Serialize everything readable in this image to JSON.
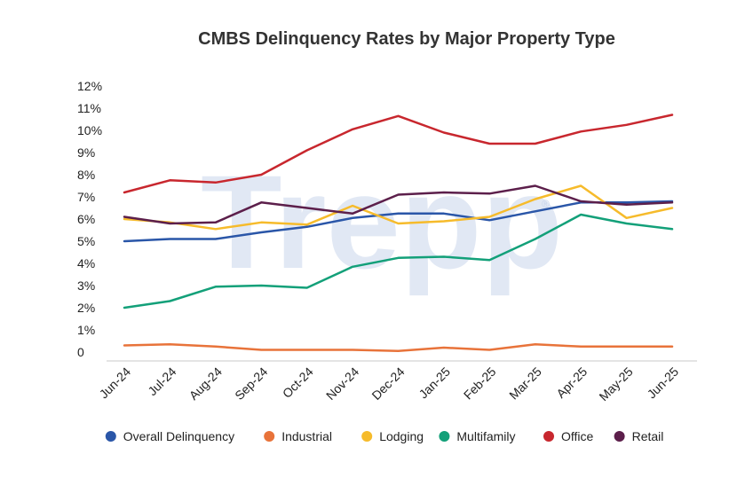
{
  "chart_data": {
    "type": "line",
    "title": "CMBS Delinquency Rates by Major Property Type",
    "watermark": "Trepp",
    "categories": [
      "Jun-24",
      "Jul-24",
      "Aug-24",
      "Sep-24",
      "Oct-24",
      "Nov-24",
      "Dec-24",
      "Jan-25",
      "Feb-25",
      "Mar-25",
      "Apr-25",
      "May-25",
      "Jun-25"
    ],
    "y_ticks": [
      "0",
      "1%",
      "2%",
      "3%",
      "4%",
      "5%",
      "6%",
      "7%",
      "8%",
      "9%",
      "10%",
      "11%",
      "12%"
    ],
    "ylim": [
      0,
      12
    ],
    "grid": false,
    "legend_position": "bottom",
    "series": [
      {
        "name": "Overall Delinquency",
        "color": "#2a56a8",
        "values": [
          5.0,
          5.1,
          5.1,
          5.4,
          5.65,
          6.05,
          6.25,
          6.25,
          5.95,
          6.35,
          6.75,
          6.75,
          6.8
        ]
      },
      {
        "name": "Industrial",
        "color": "#e8733a",
        "values": [
          0.3,
          0.35,
          0.25,
          0.1,
          0.1,
          0.1,
          0.05,
          0.2,
          0.1,
          0.35,
          0.25,
          0.25,
          0.25
        ]
      },
      {
        "name": "Lodging",
        "color": "#f6bb2b",
        "values": [
          6.0,
          5.85,
          5.55,
          5.85,
          5.75,
          6.6,
          5.8,
          5.9,
          6.1,
          6.9,
          7.5,
          6.05,
          6.5
        ]
      },
      {
        "name": "Multifamily",
        "color": "#13a079",
        "values": [
          2.0,
          2.3,
          2.95,
          3.0,
          2.9,
          3.85,
          4.25,
          4.3,
          4.15,
          5.1,
          6.2,
          5.8,
          5.55
        ]
      },
      {
        "name": "Office",
        "color": "#c8272e",
        "values": [
          7.2,
          7.75,
          7.65,
          8.0,
          9.1,
          10.05,
          10.65,
          9.9,
          9.4,
          9.4,
          9.95,
          10.25,
          10.7
        ]
      },
      {
        "name": "Retail",
        "color": "#5c1f4b",
        "values": [
          6.1,
          5.8,
          5.85,
          6.75,
          6.5,
          6.25,
          7.1,
          7.2,
          7.15,
          7.5,
          6.8,
          6.65,
          6.75
        ]
      }
    ]
  }
}
